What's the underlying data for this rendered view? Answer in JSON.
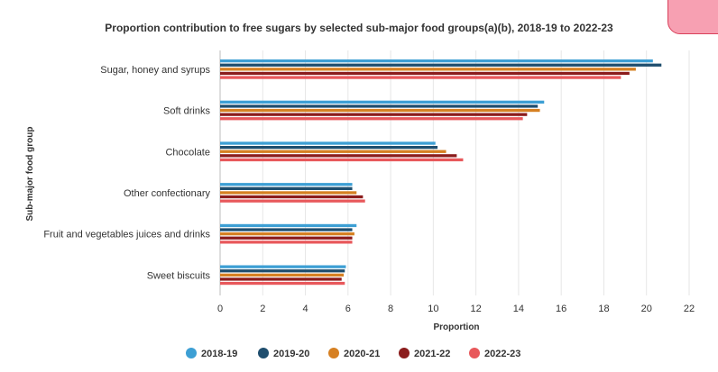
{
  "chart_data": {
    "type": "bar",
    "orientation": "horizontal",
    "title": "Proportion contribution to free sugars by selected sub-major food groups(a)(b), 2018-19 to 2022-23",
    "xlabel": "Proportion",
    "ylabel": "Sub-major food group",
    "xlim": [
      0,
      22
    ],
    "xticks": [
      0,
      2,
      4,
      6,
      8,
      10,
      12,
      14,
      16,
      18,
      20,
      22
    ],
    "grid": true,
    "legend_position": "bottom",
    "categories": [
      "Sugar, honey and syrups",
      "Soft drinks",
      "Chocolate",
      "Other confectionary",
      "Fruit and vegetables juices and drinks",
      "Sweet biscuits"
    ],
    "series": [
      {
        "name": "2018-19",
        "color": "#3d9fd4",
        "values": [
          20.3,
          15.2,
          10.1,
          6.2,
          6.4,
          5.9
        ]
      },
      {
        "name": "2019-20",
        "color": "#1f4e6e",
        "values": [
          20.7,
          14.9,
          10.2,
          6.2,
          6.2,
          5.85
        ]
      },
      {
        "name": "2020-21",
        "color": "#d68022",
        "values": [
          19.5,
          15.0,
          10.6,
          6.4,
          6.3,
          5.8
        ]
      },
      {
        "name": "2021-22",
        "color": "#8b1c1c",
        "values": [
          19.2,
          14.4,
          11.1,
          6.7,
          6.2,
          5.7
        ]
      },
      {
        "name": "2022-23",
        "color": "#e8585b",
        "values": [
          18.8,
          14.2,
          11.4,
          6.8,
          6.2,
          5.85
        ]
      }
    ]
  }
}
